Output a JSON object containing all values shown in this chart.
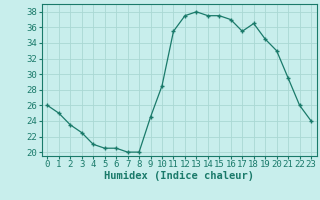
{
  "x": [
    0,
    1,
    2,
    3,
    4,
    5,
    6,
    7,
    8,
    9,
    10,
    11,
    12,
    13,
    14,
    15,
    16,
    17,
    18,
    19,
    20,
    21,
    22,
    23
  ],
  "y": [
    26,
    25,
    23.5,
    22.5,
    21,
    20.5,
    20.5,
    20,
    20,
    24.5,
    28.5,
    35.5,
    37.5,
    38,
    37.5,
    37.5,
    37,
    35.5,
    36.5,
    34.5,
    33,
    29.5,
    26,
    24
  ],
  "title": "",
  "xlabel": "Humidex (Indice chaleur)",
  "ylabel": "",
  "line_color": "#1a7a6a",
  "marker": "+",
  "bg_color": "#c8eeec",
  "grid_color": "#aad8d4",
  "xlim": [
    -0.5,
    23.5
  ],
  "ylim": [
    19.5,
    39
  ],
  "yticks": [
    20,
    22,
    24,
    26,
    28,
    30,
    32,
    34,
    36,
    38
  ],
  "xticks": [
    0,
    1,
    2,
    3,
    4,
    5,
    6,
    7,
    8,
    9,
    10,
    11,
    12,
    13,
    14,
    15,
    16,
    17,
    18,
    19,
    20,
    21,
    22,
    23
  ],
  "xlabel_fontsize": 7.5,
  "tick_fontsize": 6.5
}
